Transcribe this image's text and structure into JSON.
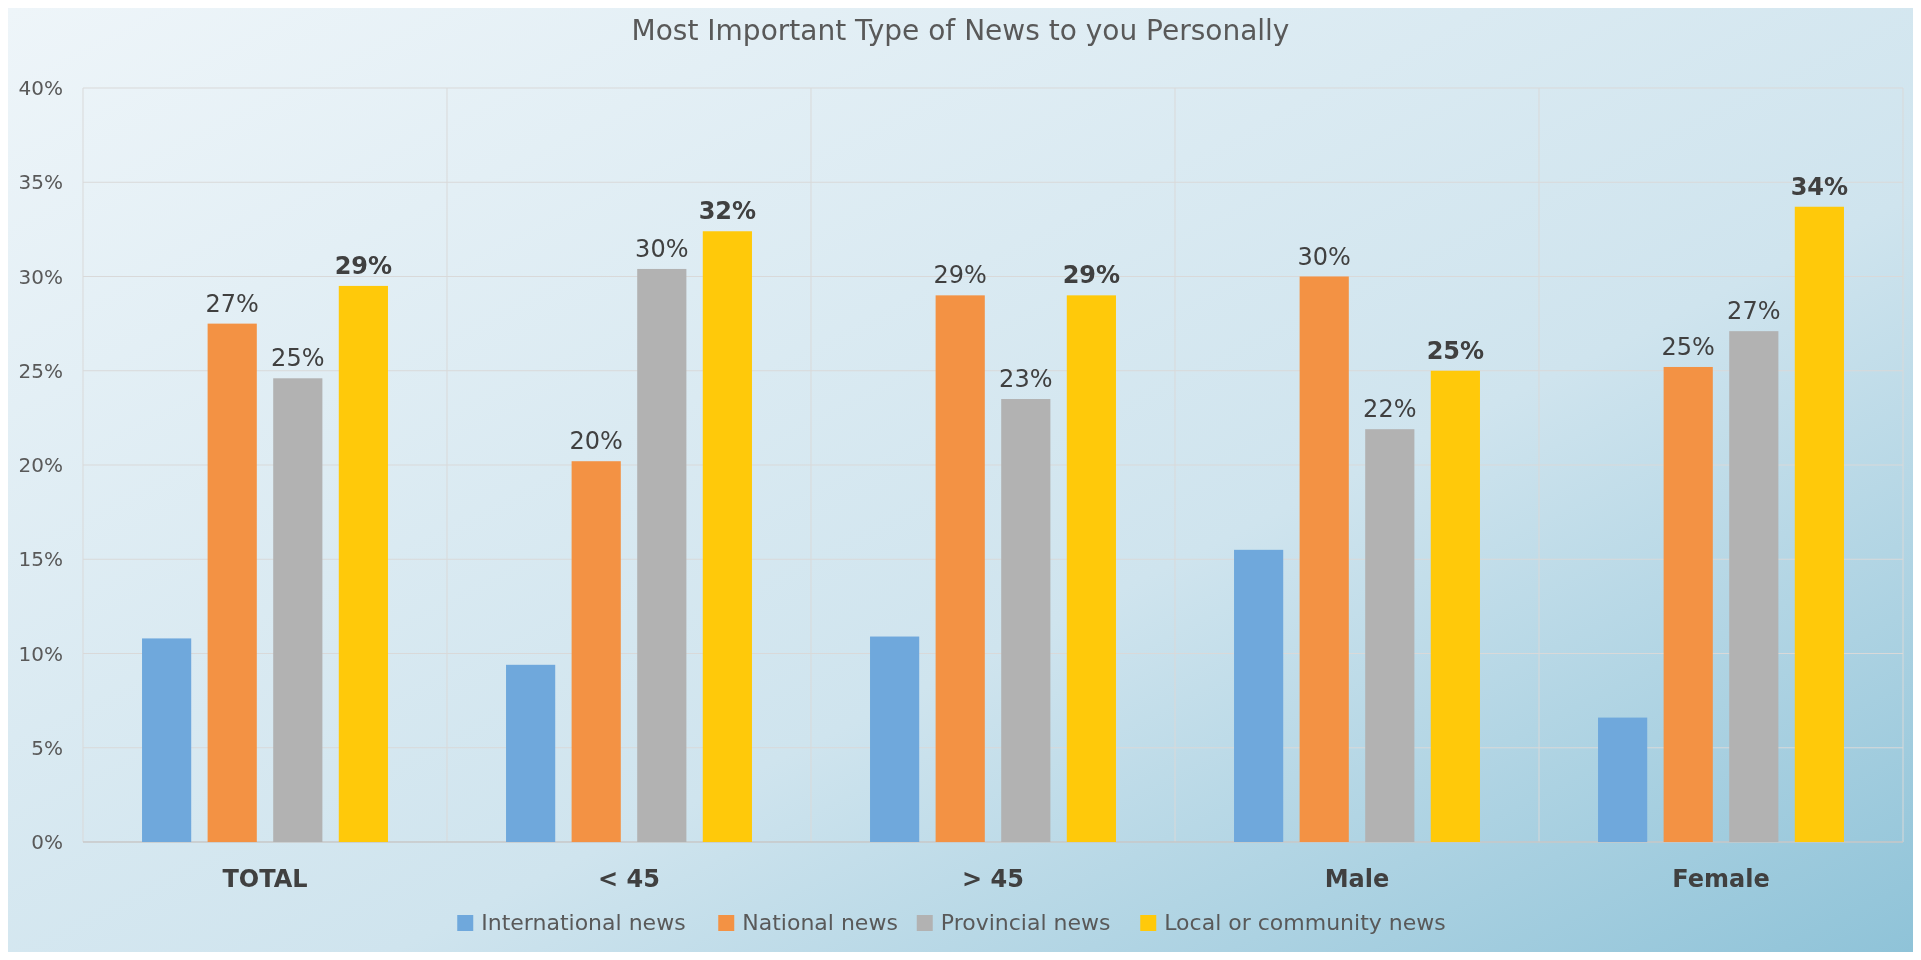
{
  "chart_data": {
    "type": "bar",
    "title": "Most Important Type of News to you Personally",
    "categories": [
      "TOTAL",
      "< 45",
      "> 45",
      "Male",
      "Female"
    ],
    "series": [
      {
        "name": "International news",
        "color": "#6fa8dc",
        "values": [
          10.8,
          9.4,
          10.9,
          15.5,
          6.6
        ]
      },
      {
        "name": "National news",
        "color": "#f39244",
        "values": [
          27.5,
          20.2,
          29.0,
          30.0,
          25.2
        ],
        "value_labels": [
          "27%",
          "20%",
          "29%",
          "30%",
          "25%"
        ]
      },
      {
        "name": "Provincial news",
        "color": "#b2b2b2",
        "values": [
          24.6,
          30.4,
          23.5,
          21.9,
          27.1
        ],
        "value_labels": [
          "25%",
          "30%",
          "23%",
          "22%",
          "27%"
        ]
      },
      {
        "name": "Local or community news",
        "color": "#ffc90a",
        "values": [
          29.5,
          32.4,
          29.0,
          25.0,
          33.7
        ],
        "value_labels": [
          "29%",
          "32%",
          "29%",
          "25%",
          "34%"
        ]
      }
    ],
    "ylim": [
      0,
      40
    ],
    "yticks": [
      {
        "value": 0,
        "label": "0%"
      },
      {
        "value": 5,
        "label": "5%"
      },
      {
        "value": 10,
        "label": "10%"
      },
      {
        "value": 15,
        "label": "15%"
      },
      {
        "value": 20,
        "label": "20%"
      },
      {
        "value": 25,
        "label": "25%"
      },
      {
        "value": 30,
        "label": "30%"
      },
      {
        "value": 35,
        "label": "35%"
      },
      {
        "value": 40,
        "label": "40%"
      }
    ],
    "grid": true,
    "legend": "bottom"
  }
}
